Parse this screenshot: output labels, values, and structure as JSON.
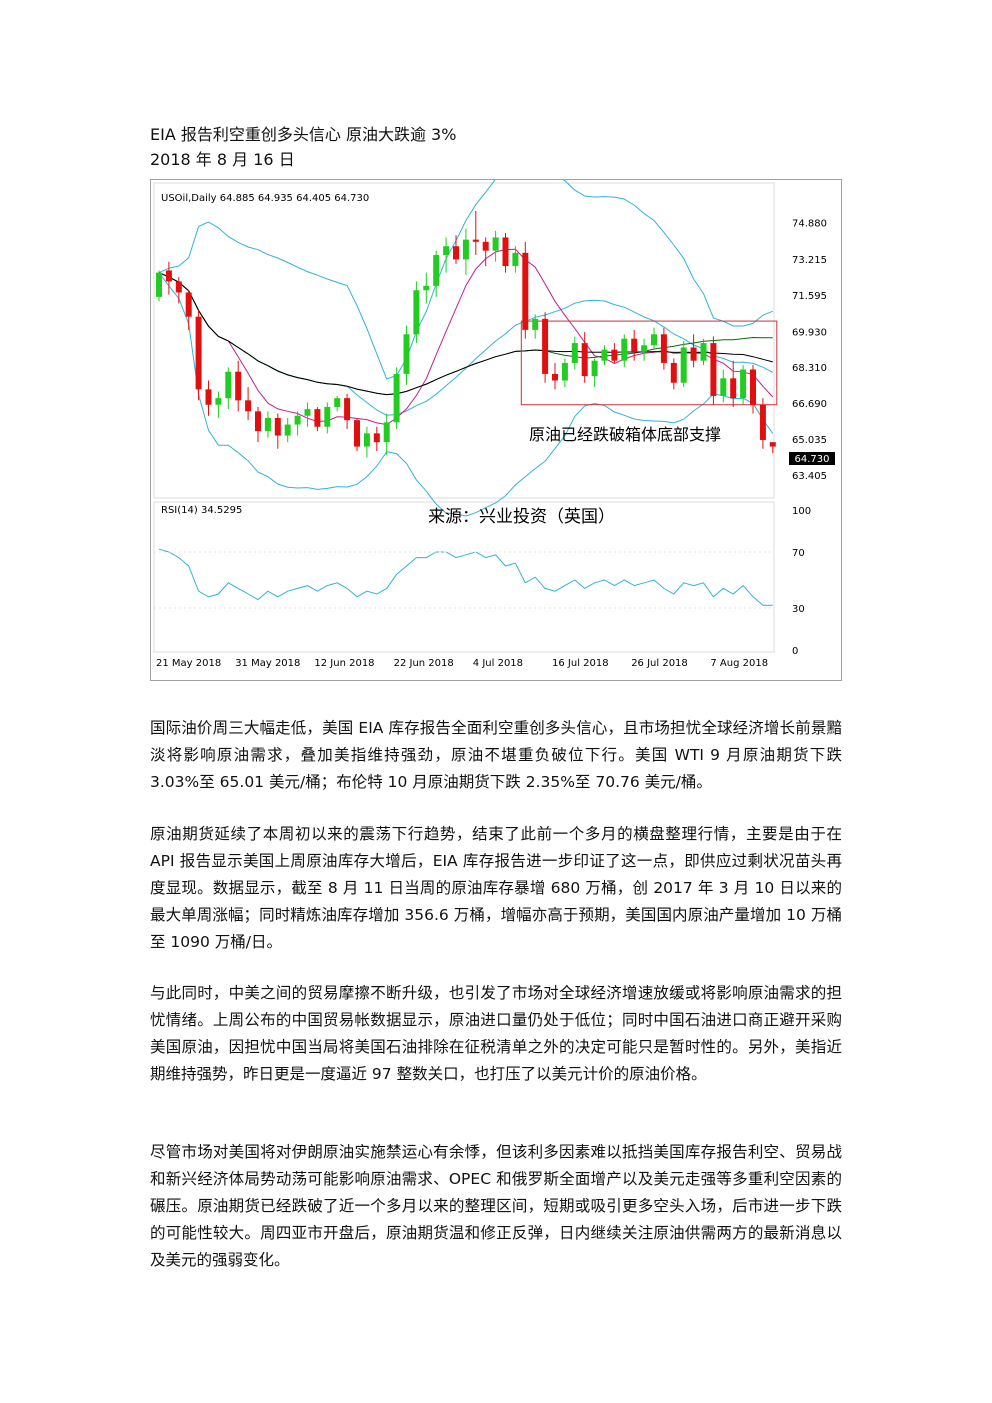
{
  "article": {
    "title": "EIA 报告利空重创多头信心  原油大跌逾 3%",
    "date": "2018 年 8 月 16 日",
    "paragraphs": [
      "国际油价周三大幅走低，美国 EIA 库存报告全面利空重创多头信心，且市场担忧全球经济增长前景黯淡将影响原油需求，叠加美指维持强劲，原油不堪重负破位下行。美国 WTI 9 月原油期货下跌 3.03%至 65.01 美元/桶；布伦特 10 月原油期货下跌 2.35%至 70.76 美元/桶。",
      "原油期货延续了本周初以来的震荡下行趋势，结束了此前一个多月的横盘整理行情，主要是由于在 API 报告显示美国上周原油库存大增后，EIA 库存报告进一步印证了这一点，即供应过剩状况苗头再度显现。数据显示，截至 8 月 11 日当周的原油库存暴增 680 万桶，创 2017 年 3 月 10 日以来的最大单周涨幅；同时精炼油库存增加 356.6 万桶，增幅亦高于预期，美国国内原油产量增加 10 万桶至 1090 万桶/日。",
      "与此同时，中美之间的贸易摩擦不断升级，也引发了市场对全球经济增速放缓或将影响原油需求的担忧情绪。上周公布的中国贸易帐数据显示，原油进口量仍处于低位；同时中国石油进口商正避开采购美国原油，因担忧中国当局将美国石油排除在征税清单之外的决定可能只是暂时性的。另外，美指近期维持强势，昨日更是一度逼近 97 整数关口，也打压了以美元计价的原油价格。",
      "尽管市场对美国将对伊朗原油实施禁运心有余悸，但该利多因素难以抵挡美国库存报告利空、贸易战和新兴经济体局势动荡可能影响原油需求、OPEC 和俄罗斯全面增产以及美元走强等多重利空因素的碾压。原油期货已经跌破了近一个多月以来的整理区间，短期或吸引更多空头入场，后市进一步下跌的可能性较大。周四亚市开盘后，原油期货温和修正反弹，日内继续关注原油供需两方的最新消息以及美元的强弱变化。"
    ]
  },
  "chart_data": {
    "type": "candlestick",
    "header": "USOil,Daily  64.885 64.935 64.405 64.730",
    "current_price_label": "64.730",
    "annotation": "原油已经跌破箱体底部支撑",
    "source": "来源：兴业投资（英国）",
    "y_ticks": [
      "74.880",
      "73.215",
      "71.595",
      "69.930",
      "68.310",
      "66.690",
      "65.035",
      "63.405"
    ],
    "ylim": [
      62.5,
      75.9
    ],
    "x_ticks": [
      {
        "label": "21 May 2018",
        "index": 0
      },
      {
        "label": "31 May 2018",
        "index": 8
      },
      {
        "label": "12 Jun 2018",
        "index": 16
      },
      {
        "label": "22 Jun 2018",
        "index": 24
      },
      {
        "label": "4 Jul 2018",
        "index": 32
      },
      {
        "label": "16 Jul 2018",
        "index": 40
      },
      {
        "label": "26 Jul 2018",
        "index": 48
      },
      {
        "label": "7 Aug 2018",
        "index": 56
      }
    ],
    "candles": [
      [
        71.5,
        72.7,
        71.3,
        72.6
      ],
      [
        72.7,
        73.1,
        71.6,
        72.2
      ],
      [
        72.2,
        72.4,
        71.2,
        71.7
      ],
      [
        71.7,
        71.8,
        70.0,
        70.6
      ],
      [
        70.6,
        70.9,
        66.8,
        67.3
      ],
      [
        67.3,
        67.7,
        66.1,
        66.6
      ],
      [
        66.6,
        67.2,
        66.0,
        66.9
      ],
      [
        66.9,
        68.3,
        66.4,
        68.1
      ],
      [
        68.1,
        68.6,
        66.3,
        66.8
      ],
      [
        66.8,
        67.4,
        65.9,
        66.3
      ],
      [
        66.3,
        66.5,
        64.9,
        65.4
      ],
      [
        65.4,
        66.3,
        65.1,
        66.0
      ],
      [
        66.0,
        66.2,
        64.6,
        65.2
      ],
      [
        65.2,
        66.0,
        64.9,
        65.7
      ],
      [
        65.7,
        66.3,
        65.2,
        66.1
      ],
      [
        66.1,
        66.7,
        65.6,
        66.4
      ],
      [
        66.4,
        66.5,
        65.4,
        65.6
      ],
      [
        65.6,
        66.7,
        65.3,
        66.5
      ],
      [
        66.5,
        67.0,
        66.3,
        66.9
      ],
      [
        66.9,
        67.1,
        65.5,
        65.9
      ],
      [
        65.9,
        66.0,
        64.5,
        64.7
      ],
      [
        64.7,
        65.6,
        64.2,
        65.3
      ],
      [
        65.3,
        65.6,
        64.5,
        64.9
      ],
      [
        64.9,
        66.2,
        64.3,
        65.8
      ],
      [
        65.8,
        68.3,
        65.5,
        68.0
      ],
      [
        68.0,
        70.2,
        67.5,
        69.8
      ],
      [
        69.8,
        72.2,
        69.4,
        71.8
      ],
      [
        71.8,
        72.6,
        71.2,
        72.0
      ],
      [
        72.0,
        73.6,
        71.5,
        73.4
      ],
      [
        73.4,
        74.2,
        72.6,
        73.8
      ],
      [
        73.8,
        74.3,
        73.0,
        73.2
      ],
      [
        73.2,
        74.6,
        72.5,
        74.1
      ],
      [
        74.1,
        75.4,
        73.4,
        74.0
      ],
      [
        74.0,
        74.2,
        72.9,
        73.6
      ],
      [
        73.6,
        74.5,
        73.1,
        74.2
      ],
      [
        74.2,
        74.4,
        72.6,
        72.9
      ],
      [
        72.9,
        73.8,
        72.6,
        73.5
      ],
      [
        73.5,
        74.0,
        69.6,
        70.0
      ],
      [
        70.0,
        70.7,
        69.6,
        70.5
      ],
      [
        70.5,
        70.8,
        67.6,
        68.0
      ],
      [
        68.0,
        68.5,
        67.3,
        67.7
      ],
      [
        67.7,
        68.7,
        67.4,
        68.5
      ],
      [
        68.5,
        69.7,
        68.2,
        69.4
      ],
      [
        69.4,
        69.9,
        67.6,
        67.9
      ],
      [
        67.9,
        68.7,
        67.4,
        68.6
      ],
      [
        68.6,
        69.3,
        68.4,
        69.1
      ],
      [
        69.1,
        69.4,
        68.5,
        68.6
      ],
      [
        68.6,
        69.8,
        68.3,
        69.6
      ],
      [
        69.6,
        70.0,
        68.6,
        69.0
      ],
      [
        69.0,
        69.6,
        68.6,
        69.3
      ],
      [
        69.3,
        70.1,
        69.1,
        69.8
      ],
      [
        69.8,
        70.1,
        68.2,
        68.5
      ],
      [
        68.5,
        68.7,
        67.3,
        67.6
      ],
      [
        67.6,
        69.5,
        67.4,
        69.2
      ],
      [
        69.2,
        69.8,
        68.3,
        68.6
      ],
      [
        68.6,
        69.6,
        68.4,
        69.4
      ],
      [
        69.4,
        69.7,
        66.6,
        67.0
      ],
      [
        67.0,
        68.2,
        66.7,
        67.8
      ],
      [
        67.8,
        68.6,
        66.5,
        66.9
      ],
      [
        66.9,
        68.4,
        66.6,
        68.2
      ],
      [
        68.2,
        68.4,
        66.2,
        66.6
      ],
      [
        66.6,
        66.9,
        64.6,
        65.0
      ],
      [
        64.9,
        64.9,
        64.4,
        64.7
      ]
    ],
    "rsi": {
      "label": "RSI(14) 34.5295",
      "ticks": [
        "100",
        "70",
        "30",
        "0"
      ],
      "values": [
        72,
        70,
        66,
        60,
        42,
        38,
        40,
        48,
        44,
        40,
        36,
        42,
        38,
        42,
        44,
        46,
        42,
        46,
        48,
        44,
        38,
        42,
        40,
        44,
        54,
        60,
        66,
        66,
        70,
        70,
        66,
        68,
        70,
        66,
        68,
        60,
        62,
        48,
        52,
        44,
        42,
        46,
        50,
        44,
        48,
        50,
        46,
        50,
        46,
        48,
        50,
        44,
        40,
        48,
        46,
        48,
        38,
        44,
        40,
        46,
        38,
        32,
        32
      ]
    },
    "box": {
      "start_index": 37,
      "end_index": 62,
      "high": 70.4,
      "low": 66.6
    }
  }
}
